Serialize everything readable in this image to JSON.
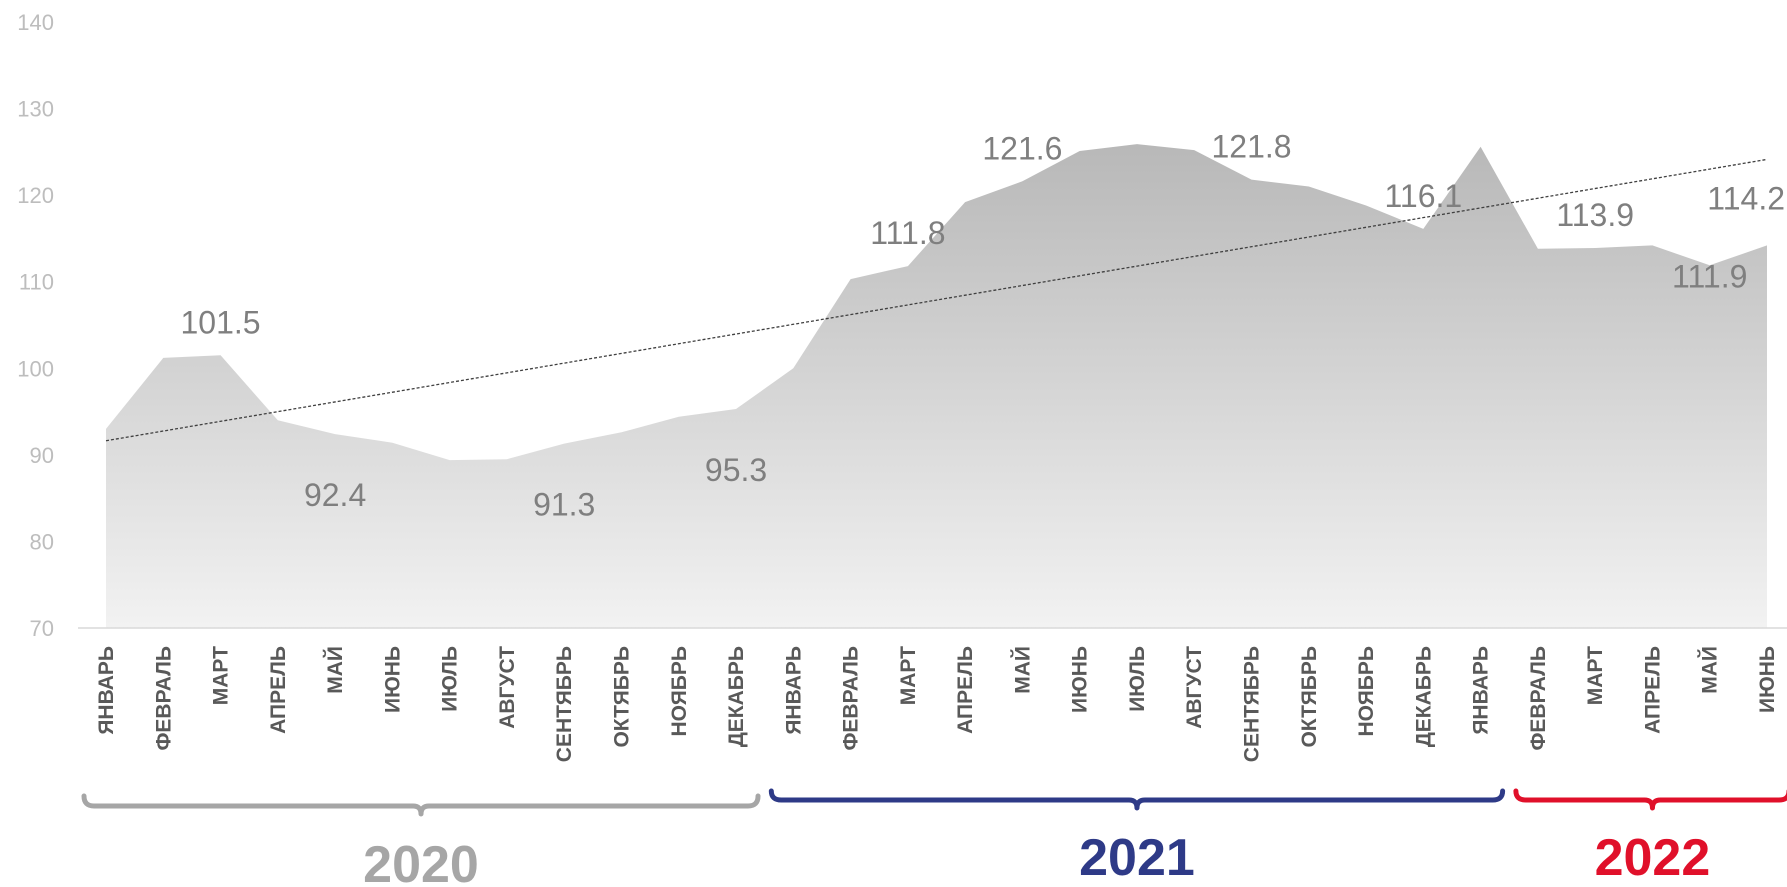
{
  "chart_data": {
    "type": "area",
    "title": "",
    "xlabel": "",
    "ylabel": "",
    "ylim": [
      70,
      140
    ],
    "yticks": [
      70,
      80,
      90,
      100,
      110,
      120,
      130,
      140
    ],
    "grid": false,
    "legend": "none",
    "trendline": "linear",
    "categories": [
      "ЯНВАРЬ",
      "ФЕВРАЛЬ",
      "МАРТ",
      "АПРЕЛЬ",
      "МАЙ",
      "ИЮНЬ",
      "ИЮЛЬ",
      "АВГУСТ",
      "СЕНТЯБРЬ",
      "ОКТЯБРЬ",
      "НОЯБРЬ",
      "ДЕКАБРЬ",
      "ЯНВАРЬ",
      "ФЕВРАЛЬ",
      "МАРТ",
      "АПРЕЛЬ",
      "МАЙ",
      "ИЮНЬ",
      "ИЮЛЬ",
      "АВГУСТ",
      "СЕНТЯБРЬ",
      "ОКТЯБРЬ",
      "НОЯБРЬ",
      "ДЕКАБРЬ",
      "ЯНВАРЬ",
      "ФЕВРАЛЬ",
      "МАРТ",
      "АПРЕЛЬ",
      "МАЙ",
      "ИЮНЬ"
    ],
    "values": [
      93.0,
      101.2,
      101.5,
      94.0,
      92.4,
      91.4,
      89.4,
      89.5,
      91.3,
      92.6,
      94.4,
      95.3,
      100.0,
      110.3,
      111.8,
      119.2,
      121.6,
      125.1,
      125.9,
      125.2,
      121.8,
      121.0,
      118.8,
      116.1,
      125.6,
      113.8,
      113.9,
      114.2,
      111.9,
      114.2
    ],
    "data_labels": [
      {
        "index": 2,
        "text": "101.5"
      },
      {
        "index": 4,
        "text": "92.4"
      },
      {
        "index": 8,
        "text": "91.3"
      },
      {
        "index": 11,
        "text": "95.3"
      },
      {
        "index": 14,
        "text": "111.8"
      },
      {
        "index": 16,
        "text": "121.6"
      },
      {
        "index": 20,
        "text": "121.8"
      },
      {
        "index": 23,
        "text": "116.1"
      },
      {
        "index": 26,
        "text": "113.9"
      },
      {
        "index": 28,
        "text": "111.9"
      },
      {
        "index": 29,
        "text": "114.2"
      }
    ],
    "year_groups": [
      {
        "label": "2020",
        "start": 0,
        "end": 11,
        "color": "#a6a6a6"
      },
      {
        "label": "2021",
        "start": 12,
        "end": 24,
        "color": "#2e3a87"
      },
      {
        "label": "2022",
        "start": 25,
        "end": 29,
        "color": "#e0102a"
      }
    ],
    "colors": {
      "area_top": "#b8b8b8",
      "area_bottom": "#f2f2f2",
      "trend": "#404040",
      "axis": "#d9d9d9"
    }
  }
}
